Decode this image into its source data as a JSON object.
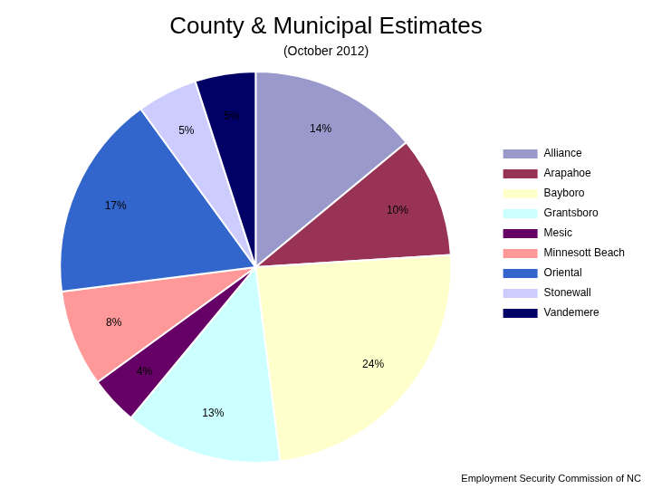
{
  "chart_data": {
    "type": "pie",
    "title": "County & Municipal Estimates",
    "subtitle": "(October 2012)",
    "footer": "Employment Security Commission of NC",
    "categories": [
      "Alliance",
      "Arapahoe",
      "Bayboro",
      "Grantsboro",
      "Mesic",
      "Minnesott Beach",
      "Oriental",
      "Stonewall",
      "Vandemere"
    ],
    "values": [
      14,
      10,
      24,
      13,
      4,
      8,
      17,
      5,
      5
    ],
    "value_labels": [
      "14%",
      "10%",
      "24%",
      "13%",
      "4%",
      "8%",
      "17%",
      "5%",
      "5%"
    ],
    "colors": [
      "#9999cc",
      "#993355",
      "#ffffcc",
      "#ccffff",
      "#660066",
      "#ff9999",
      "#3366cc",
      "#ccccff",
      "#000066"
    ],
    "data_labels": true,
    "legend": "right"
  }
}
